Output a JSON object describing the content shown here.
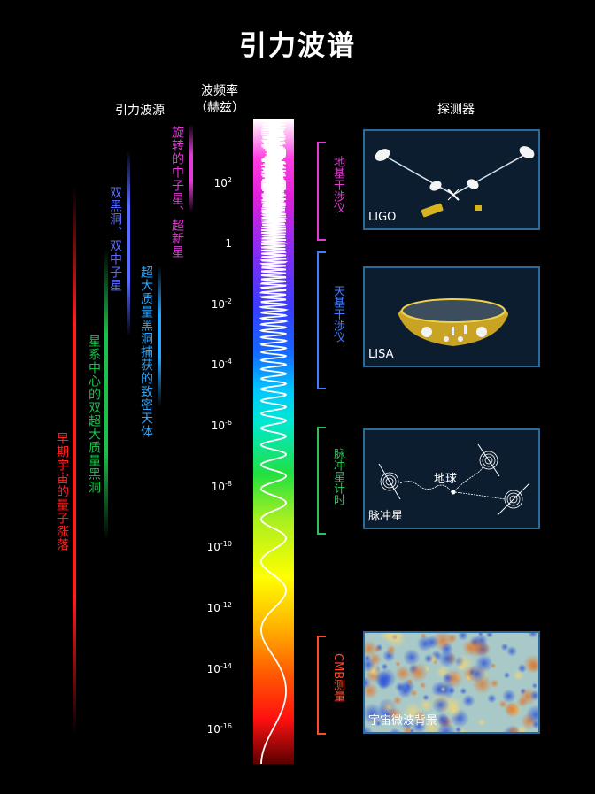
{
  "title": "引力波谱",
  "headers": {
    "sources": "引力波源",
    "frequency_line1": "波频率",
    "frequency_line2": "（赫兹）",
    "detectors": "探测器"
  },
  "frequency_ticks": [
    {
      "base": "10",
      "exp": "2"
    },
    {
      "base": "1",
      "exp": ""
    },
    {
      "base": "10",
      "exp": "-2"
    },
    {
      "base": "10",
      "exp": "-4"
    },
    {
      "base": "10",
      "exp": "-6"
    },
    {
      "base": "10",
      "exp": "-8"
    },
    {
      "base": "10",
      "exp": "-10"
    },
    {
      "base": "10",
      "exp": "-12"
    },
    {
      "base": "10",
      "exp": "-14"
    },
    {
      "base": "10",
      "exp": "-16"
    }
  ],
  "sources": [
    {
      "label": "早期宇宙的量子涨落",
      "color": "#ff2020"
    },
    {
      "label": "星系中心的双超大质量黑洞",
      "color": "#19c24a"
    },
    {
      "label": "双黑洞、双中子星",
      "color": "#5a6cff"
    },
    {
      "label": "超大质量黑洞捕获的致密天体",
      "color": "#2aa6ff"
    },
    {
      "label": "旋转的中子星、超新星",
      "color": "#e33bd6"
    }
  ],
  "detector_methods": [
    {
      "label": "地基干涉仪",
      "color": "#e23bd0"
    },
    {
      "label": "天基干涉仪",
      "color": "#3f7dff"
    },
    {
      "label": "脉冲星计时",
      "color": "#2fc25a"
    },
    {
      "label": "CMB测量",
      "color": "#ff4a2a"
    }
  ],
  "panels": {
    "ligo": "LIGO",
    "lisa": "LISA",
    "pulsar": "脉冲星",
    "pulsar_earth": "地球",
    "cmb": "宇宙微波背景"
  },
  "colors": {
    "panel_border": "#2d6a97",
    "panel_bg": "#0c1d30"
  }
}
